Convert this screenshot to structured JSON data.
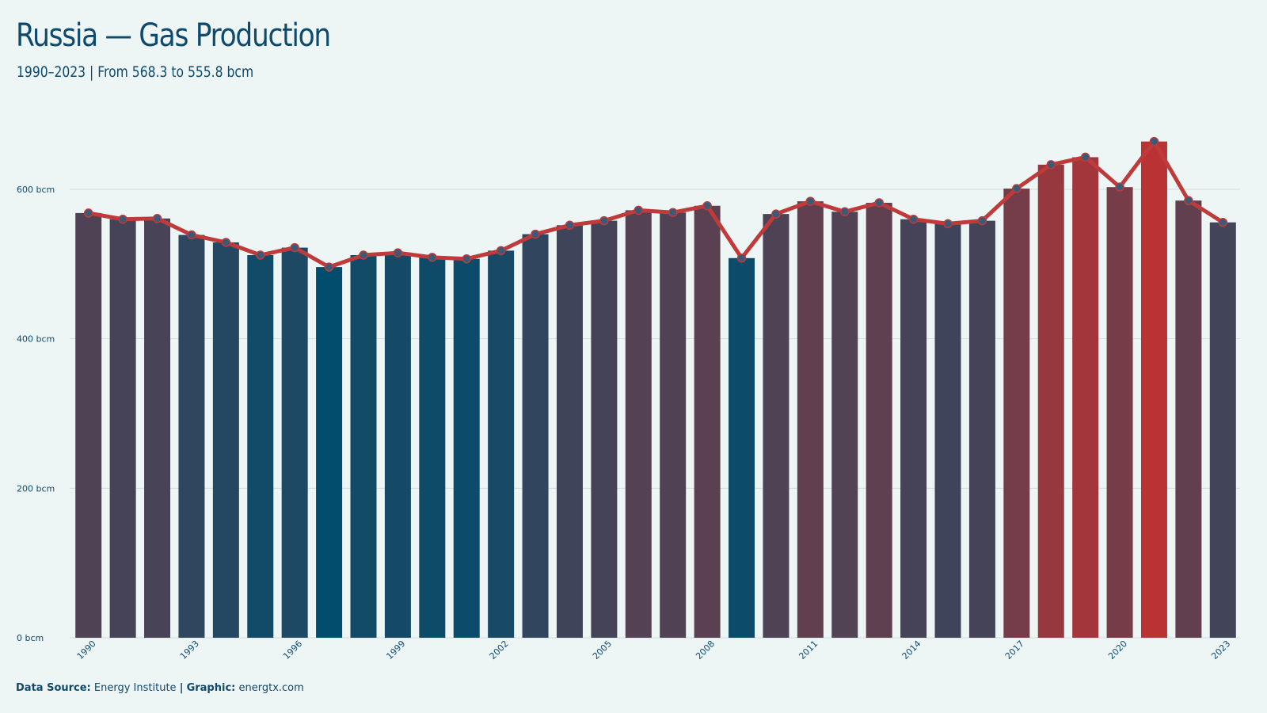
{
  "header": {
    "title": "Russia — Gas Production",
    "subtitle": "1990–2023 | From 568.3 to 555.8 bcm"
  },
  "footer": {
    "source_label": "Data Source:",
    "source_value": "Energy Institute",
    "separator": "|",
    "graphic_label": "Graphic:",
    "graphic_value": "energtx.com"
  },
  "colors": {
    "background": "#eef5f5",
    "text": "#0d4a6e",
    "line": "#bf3b3b",
    "marker": "#3a5a78",
    "low_bar": "#004d6e",
    "high_bar": "#b93333"
  },
  "chart_data": {
    "type": "bar",
    "title": "Russia — Gas Production",
    "subtitle": "1990–2023 | From 568.3 to 555.8 bcm",
    "xlabel": "",
    "ylabel": "",
    "ylim": [
      0,
      600
    ],
    "y_unit": "bcm",
    "yticks": [
      0,
      200,
      400,
      600
    ],
    "ytick_labels": [
      "0 bcm",
      "200 bcm",
      "400 bcm",
      "600 bcm"
    ],
    "grid": true,
    "categories": [
      1990,
      1991,
      1992,
      1993,
      1994,
      1995,
      1996,
      1997,
      1998,
      1999,
      2000,
      2001,
      2002,
      2003,
      2004,
      2005,
      2006,
      2007,
      2008,
      2009,
      2010,
      2011,
      2012,
      2013,
      2014,
      2015,
      2016,
      2017,
      2018,
      2019,
      2020,
      2021,
      2022,
      2023
    ],
    "xtick_labels": [
      "1990",
      "1993",
      "1996",
      "1999",
      "2002",
      "2005",
      "2008",
      "2011",
      "2014",
      "2017",
      "2020",
      "2023"
    ],
    "values": [
      568.3,
      560,
      561,
      539,
      529,
      512,
      522,
      496,
      512,
      515,
      509,
      507,
      518,
      540,
      552,
      558,
      572,
      569,
      578,
      508,
      567,
      584,
      570,
      582,
      560,
      554,
      558,
      601,
      633,
      643,
      603,
      664,
      585,
      555.8
    ],
    "overlay": "line-with-markers"
  }
}
